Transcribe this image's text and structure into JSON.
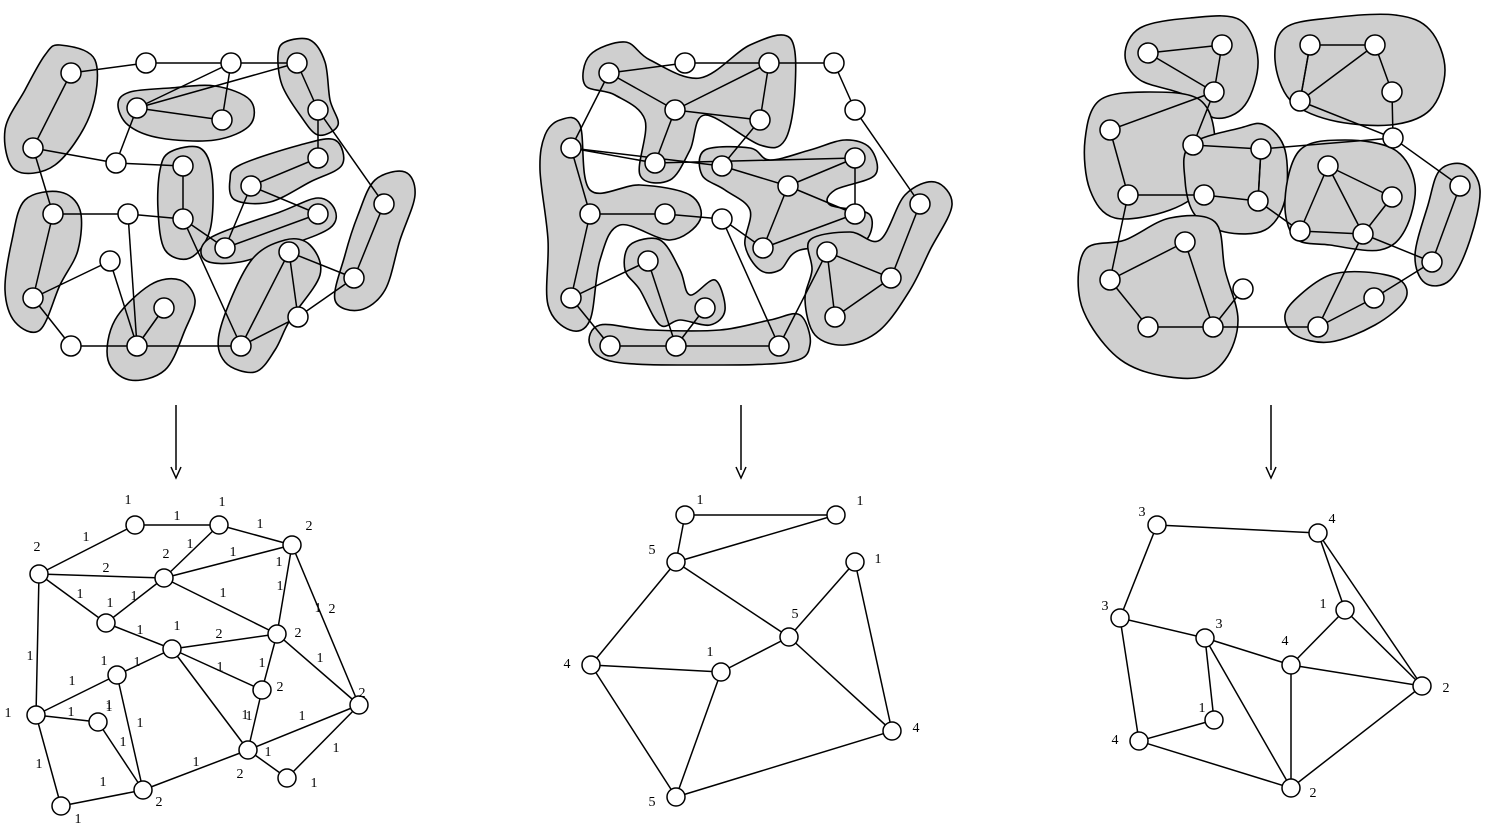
{
  "panels": [
    {
      "id": "left",
      "node_labels": [
        "1",
        "1",
        "2",
        "2",
        "2",
        "1",
        "2",
        "2",
        "1",
        "2",
        "2",
        "1",
        "2",
        "1",
        "1"
      ],
      "edge_labels": [
        "1",
        "1",
        "1",
        "1",
        "2",
        "1",
        "1",
        "1",
        "1",
        "1",
        "1",
        "1",
        "2",
        "1",
        "1",
        "2",
        "1",
        "1",
        "1",
        "1",
        "1",
        "1",
        "1",
        "1",
        "1",
        "1",
        "1",
        "1",
        "1",
        "1",
        "1",
        "1",
        "1",
        "1",
        "1"
      ]
    },
    {
      "id": "middle",
      "node_labels": [
        "1",
        "1",
        "5",
        "1",
        "5",
        "1",
        "4",
        "4",
        "5"
      ]
    },
    {
      "id": "right",
      "node_labels": [
        "3",
        "4",
        "3",
        "3",
        "1",
        "4",
        "2",
        "1",
        "4",
        "2"
      ]
    }
  ],
  "colors": {
    "cluster_fill": "#cfcfcf",
    "stroke": "#000000",
    "node_fill": "#ffffff"
  }
}
